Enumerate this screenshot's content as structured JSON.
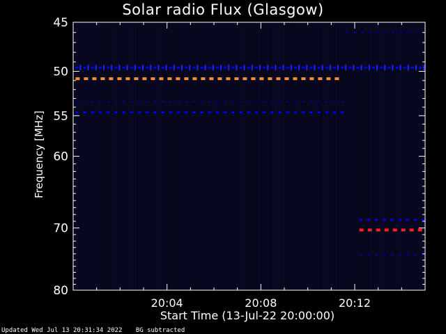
{
  "chart_data": {
    "type": "heatmap",
    "title": "Solar radio Flux (Glasgow)",
    "ylabel": "Frequency [MHz]",
    "xlabel": "Start Time (13-Jul-22 20:00:00)",
    "x_range_minutes": [
      0,
      15
    ],
    "y_range_mhz": [
      45,
      80
    ],
    "y_scale": "log",
    "y_inverted": true,
    "y_ticks": [
      45,
      50,
      55,
      60,
      70,
      80
    ],
    "x_ticks": [
      {
        "minute": 4,
        "label": "20:04"
      },
      {
        "minute": 8,
        "label": "20:08"
      },
      {
        "minute": 12,
        "label": "20:12"
      }
    ],
    "background_color": "#06061a",
    "band_color_low": "#0000dd",
    "band_color_mid": "#ff8c3c",
    "band_color_high": "#ff2020",
    "bands": [
      {
        "freq": 50.8,
        "t_start": 0.1,
        "t_end": 11.6,
        "color": "#ff8c3c",
        "intensity": "high"
      },
      {
        "freq": 54.6,
        "t_start": 0.1,
        "t_end": 11.6,
        "color": "#0000ee",
        "intensity": "low"
      },
      {
        "freq": 53.4,
        "t_start": 0.1,
        "t_end": 11.6,
        "color": "#000088",
        "intensity": "faint"
      },
      {
        "freq": 49.6,
        "t_start": 0.1,
        "t_end": 15.0,
        "color": "#0000ff",
        "intensity": "low"
      },
      {
        "freq": 46.0,
        "t_start": 11.6,
        "t_end": 15.0,
        "color": "#000099",
        "intensity": "faint"
      },
      {
        "freq": 68.8,
        "t_start": 12.2,
        "t_end": 15.0,
        "color": "#0000ee",
        "intensity": "low"
      },
      {
        "freq": 70.3,
        "t_start": 12.2,
        "t_end": 15.0,
        "color": "#ff2020",
        "intensity": "high"
      },
      {
        "freq": 74.2,
        "t_start": 12.2,
        "t_end": 15.0,
        "color": "#000099",
        "intensity": "faint"
      }
    ]
  },
  "footer": {
    "updated": "Updated Wed Jul 13 20:31:34 2022",
    "bg_note": "BG subtracted"
  }
}
